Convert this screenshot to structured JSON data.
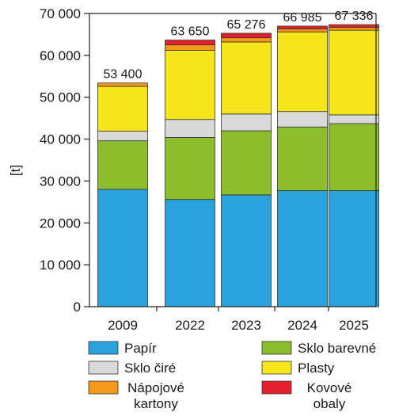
{
  "chart_data": {
    "type": "bar",
    "stacked": true,
    "categories": [
      "2009",
      "2022",
      "2023",
      "2024",
      "2025"
    ],
    "ylabel": "[t]",
    "ylim": [
      0,
      70000
    ],
    "yticks": [
      0,
      10000,
      20000,
      30000,
      40000,
      50000,
      60000,
      70000
    ],
    "ytick_labels": [
      "0",
      "10 000",
      "20 000",
      "30 000",
      "40 000",
      "50 000",
      "60 000",
      "70 000"
    ],
    "grid": false,
    "legend_position": "bottom",
    "series": [
      {
        "name": "Papír",
        "color": "#2aa3dc",
        "values": [
          28000,
          25600,
          26700,
          27700,
          27700
        ]
      },
      {
        "name": "Sklo barevné",
        "color": "#8cbd2c",
        "values": [
          11600,
          14800,
          15300,
          15200,
          16000
        ]
      },
      {
        "name": "Sklo čiré",
        "color": "#d9d9d9",
        "values": [
          2300,
          4300,
          4000,
          3700,
          2100
        ]
      },
      {
        "name": "Plasty",
        "color": "#f6e51a",
        "values": [
          10700,
          16500,
          17200,
          19000,
          20200
        ]
      },
      {
        "name": "Nápojové kartony",
        "color": "#f39a1c",
        "values": [
          800,
          1300,
          1000,
          700,
          700
        ]
      },
      {
        "name": "Kovové obaly",
        "color": "#e3202b",
        "values": [
          0,
          1150,
          1076,
          685,
          636
        ]
      }
    ],
    "totals": [
      53400,
      63650,
      65276,
      66985,
      67336
    ],
    "total_labels": [
      "53 400",
      "63 650",
      "65 276",
      "66 985",
      "67 336"
    ]
  }
}
